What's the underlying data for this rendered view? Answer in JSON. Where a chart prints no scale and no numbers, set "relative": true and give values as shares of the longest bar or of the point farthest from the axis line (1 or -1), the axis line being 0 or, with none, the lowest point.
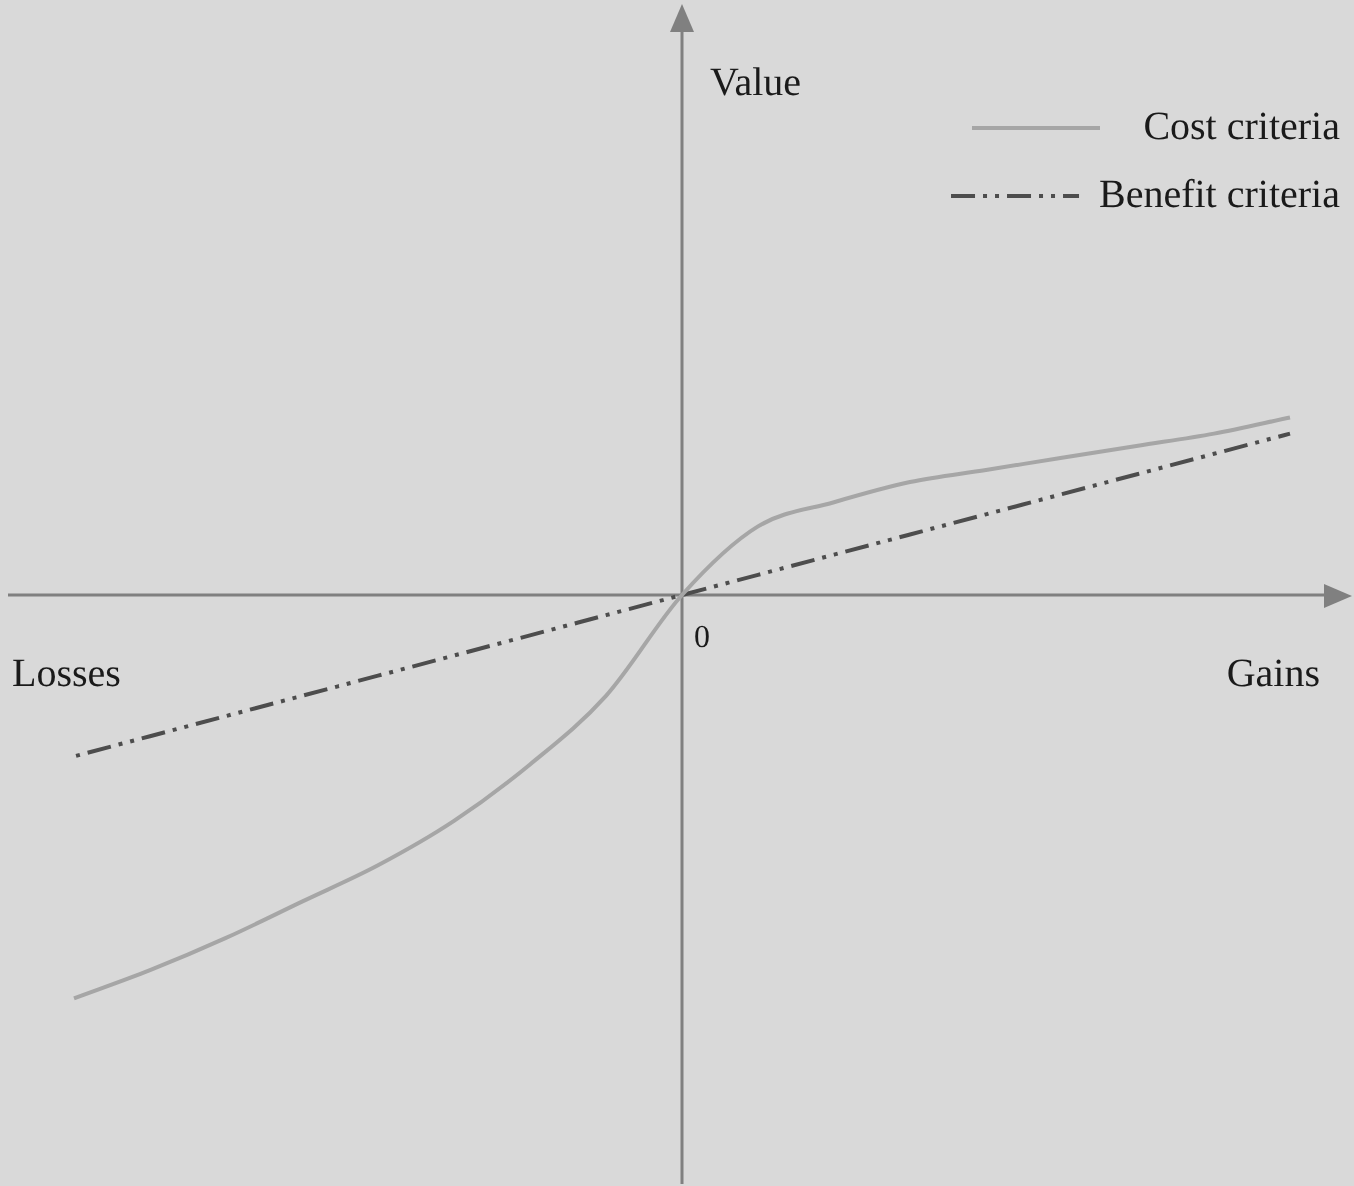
{
  "chart_data": {
    "type": "line",
    "relative": true,
    "annotations": [
      "Value",
      "Losses",
      "Gains",
      "0"
    ],
    "legend": "top right",
    "marker": "none",
    "categories": [
      null,
      null,
      null,
      null,
      null,
      null,
      null,
      null,
      null,
      null,
      null,
      null,
      null,
      null,
      null,
      null,
      null
    ],
    "series": [
      {
        "name": "Cost criteria",
        "color": "#a6a6a6",
        "line_style": "solid",
        "values": [
          -1,
          -0.93,
          -0.85,
          -0.76,
          -0.67,
          -0.56,
          -0.42,
          -0.25,
          0,
          0.17,
          0.23,
          0.28,
          0.31,
          0.34,
          0.37,
          0.4,
          0.44
        ]
      },
      {
        "name": "Benefit criteria",
        "color": "#4d4d4d",
        "line_style": "dashed",
        "values": [
          -0.4,
          -0.35,
          -0.3,
          -0.25,
          -0.2,
          -0.15,
          -0.1,
          -0.05,
          0,
          0.05,
          0.1,
          0.15,
          0.2,
          0.25,
          0.3,
          0.35,
          0.4
        ]
      }
    ]
  }
}
